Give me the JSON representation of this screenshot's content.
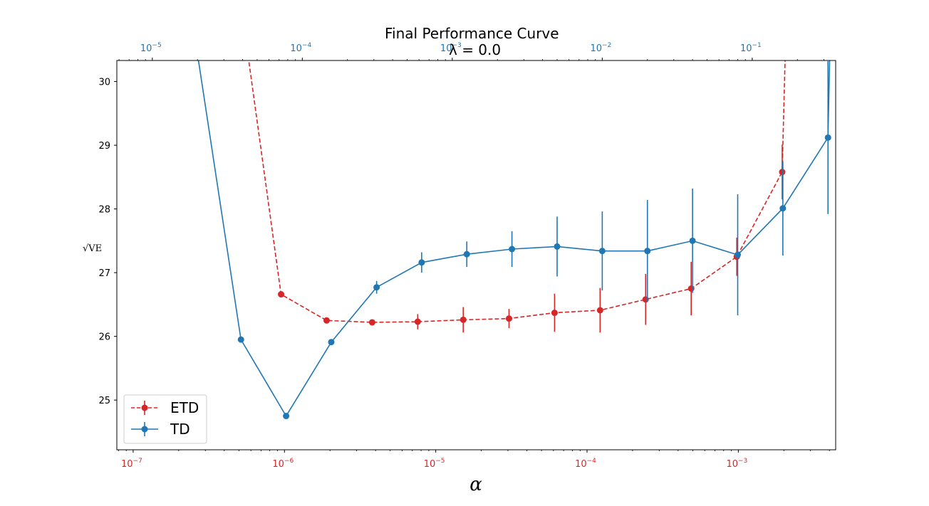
{
  "chart_data": {
    "type": "line",
    "title": "Final Performance Curve",
    "subtitle": "λ = 0.0",
    "xlabel": "α",
    "ylabel": "√VE",
    "x_scale": "log",
    "xlim": [
      7.8e-08,
      0.0044
    ],
    "ylim": [
      24.22,
      30.33
    ],
    "y_ticks": [
      25,
      26,
      27,
      28,
      29,
      30
    ],
    "bottom_axis": {
      "color": "#d62728",
      "ticks": [
        {
          "value": 1e-07,
          "mantissa": "10",
          "exp": "−7"
        },
        {
          "value": 1e-06,
          "mantissa": "10",
          "exp": "−6"
        },
        {
          "value": 1e-05,
          "mantissa": "10",
          "exp": "−5"
        },
        {
          "value": 0.0001,
          "mantissa": "10",
          "exp": "−4"
        },
        {
          "value": 0.001,
          "mantissa": "10",
          "exp": "−3"
        }
      ]
    },
    "top_axis": {
      "color": "#1f77b4",
      "xlim": [
        5.8e-06,
        0.36
      ],
      "ticks": [
        {
          "value": 1e-05,
          "mantissa": "10",
          "exp": "−5"
        },
        {
          "value": 0.0001,
          "mantissa": "10",
          "exp": "−4"
        },
        {
          "value": 0.001,
          "mantissa": "10",
          "exp": "−3"
        },
        {
          "value": 0.01,
          "mantissa": "10",
          "exp": "−2"
        },
        {
          "value": 0.1,
          "mantissa": "10",
          "exp": "−1"
        }
      ]
    },
    "grid": false,
    "legend_position": "lower-left",
    "series": [
      {
        "name": "ETD",
        "color": "#d62728",
        "dashed": true,
        "axis": "bottom",
        "x": [
          5.6e-07,
          9.5e-07,
          1.9e-06,
          3.8e-06,
          7.6e-06,
          1.52e-05,
          3.05e-05,
          6.1e-05,
          0.000122,
          0.000244,
          0.000488,
          0.000977,
          0.00195,
          0.00205
        ],
        "y": [
          30.6,
          26.66,
          26.25,
          26.22,
          26.23,
          26.26,
          26.28,
          26.37,
          26.41,
          26.58,
          26.75,
          27.25,
          28.58,
          30.6
        ],
        "yerr": [
          0,
          0,
          0.02,
          0.04,
          0.12,
          0.2,
          0.15,
          0.3,
          0.35,
          0.4,
          0.42,
          0.3,
          0.43,
          0
        ]
      },
      {
        "name": "TD",
        "color": "#1f77b4",
        "dashed": false,
        "axis": "top",
        "x": [
          1.95e-05,
          3.9e-05,
          7.8e-05,
          0.000156,
          0.000313,
          0.000625,
          0.00125,
          0.0025,
          0.005,
          0.01,
          0.02,
          0.04,
          0.08,
          0.16,
          0.32,
          0.33
        ],
        "y": [
          30.6,
          25.95,
          24.75,
          25.91,
          26.77,
          27.16,
          27.29,
          27.37,
          27.41,
          27.34,
          27.34,
          27.5,
          27.28,
          28.01,
          29.12,
          30.6
        ],
        "yerr": [
          0,
          0,
          0,
          0,
          0.1,
          0.16,
          0.2,
          0.28,
          0.47,
          0.62,
          0.8,
          0.82,
          0.95,
          0.74,
          1.2,
          0
        ]
      }
    ]
  }
}
